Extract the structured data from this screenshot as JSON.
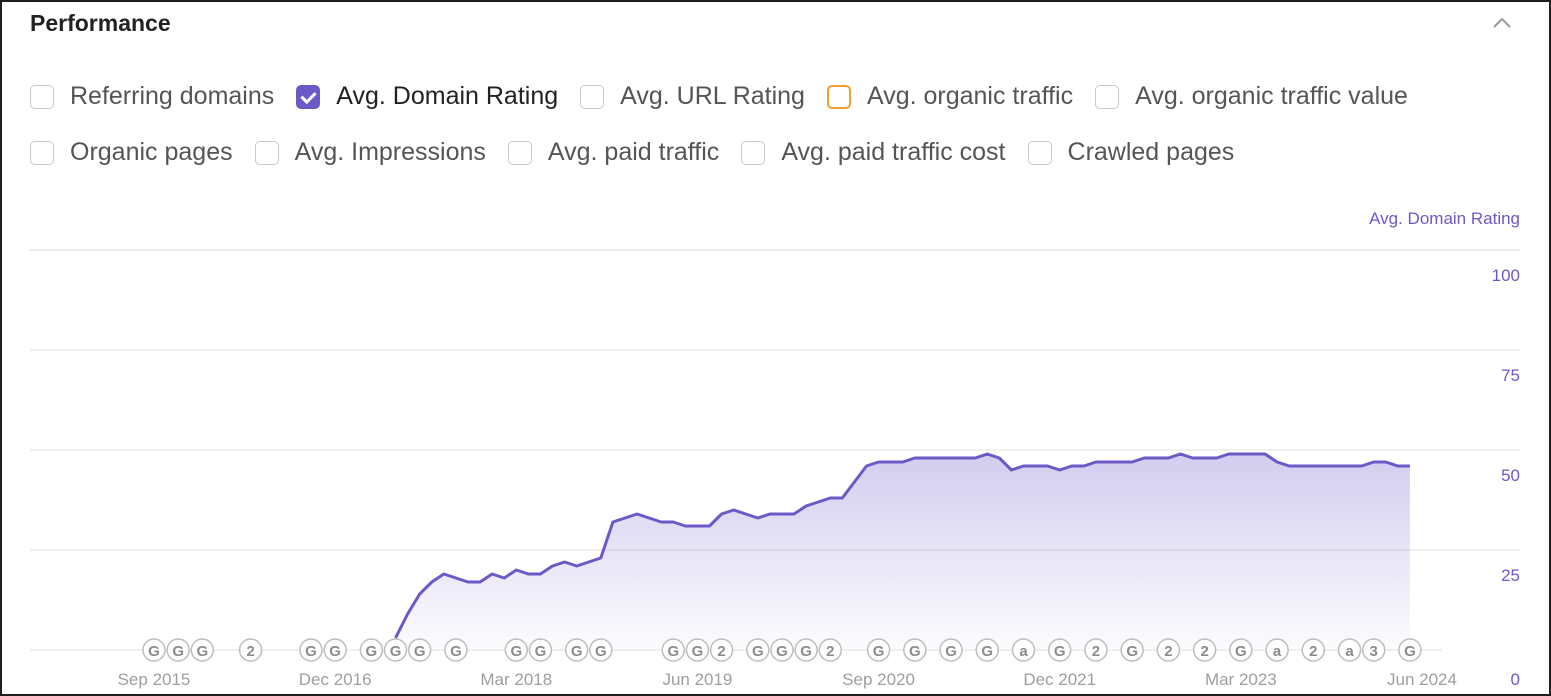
{
  "header": {
    "title": "Performance"
  },
  "metrics": [
    [
      {
        "label": "Referring domains",
        "checked": false,
        "color": "#c8c8c8"
      },
      {
        "label": "Avg. Domain Rating",
        "checked": true,
        "color": "#6c58c7"
      },
      {
        "label": "Avg. URL Rating",
        "checked": false,
        "color": "#c8c8c8"
      },
      {
        "label": "Avg. organic traffic",
        "checked": false,
        "color": "#f0a030"
      },
      {
        "label": "Avg. organic traffic value",
        "checked": false,
        "color": "#c8c8c8"
      }
    ],
    [
      {
        "label": "Organic pages",
        "checked": false,
        "color": "#c8c8c8"
      },
      {
        "label": "Avg. Impressions",
        "checked": false,
        "color": "#c8c8c8"
      },
      {
        "label": "Avg. paid traffic",
        "checked": false,
        "color": "#c8c8c8"
      },
      {
        "label": "Avg. paid traffic cost",
        "checked": false,
        "color": "#c8c8c8"
      },
      {
        "label": "Crawled pages",
        "checked": false,
        "color": "#c8c8c8"
      }
    ]
  ],
  "colors": {
    "series": "#6c58c7",
    "axis_text": "#6c58c7",
    "grid": "#e8e8e8",
    "marker": "#bdbdbd"
  },
  "chart_data": {
    "type": "area",
    "title": "",
    "xlabel": "",
    "ylabel": "Avg. Domain Rating",
    "ylim": [
      0,
      100
    ],
    "yticks": [
      0,
      25,
      50,
      75,
      100
    ],
    "xlim": [
      "2015-01",
      "2024-07"
    ],
    "xticks": [
      {
        "date": "2015-09",
        "label": "Sep 2015"
      },
      {
        "date": "2016-12",
        "label": "Dec 2016"
      },
      {
        "date": "2018-03",
        "label": "Mar 2018"
      },
      {
        "date": "2019-06",
        "label": "Jun 2019"
      },
      {
        "date": "2020-09",
        "label": "Sep 2020"
      },
      {
        "date": "2021-12",
        "label": "Dec 2021"
      },
      {
        "date": "2023-03",
        "label": "Mar 2023"
      },
      {
        "date": "2024-06",
        "label": "Jun 2024"
      }
    ],
    "grid": true,
    "series": [
      {
        "name": "Avg. Domain Rating",
        "points": [
          [
            "2017-05",
            3
          ],
          [
            "2017-06",
            9
          ],
          [
            "2017-07",
            14
          ],
          [
            "2017-08",
            17
          ],
          [
            "2017-09",
            19
          ],
          [
            "2017-10",
            18
          ],
          [
            "2017-11",
            17
          ],
          [
            "2017-12",
            17
          ],
          [
            "2018-01",
            19
          ],
          [
            "2018-02",
            18
          ],
          [
            "2018-03",
            20
          ],
          [
            "2018-04",
            19
          ],
          [
            "2018-05",
            19
          ],
          [
            "2018-06",
            21
          ],
          [
            "2018-07",
            22
          ],
          [
            "2018-08",
            21
          ],
          [
            "2018-09",
            22
          ],
          [
            "2018-10",
            23
          ],
          [
            "2018-11",
            32
          ],
          [
            "2018-12",
            33
          ],
          [
            "2019-01",
            34
          ],
          [
            "2019-02",
            33
          ],
          [
            "2019-03",
            32
          ],
          [
            "2019-04",
            32
          ],
          [
            "2019-05",
            31
          ],
          [
            "2019-06",
            31
          ],
          [
            "2019-07",
            31
          ],
          [
            "2019-08",
            34
          ],
          [
            "2019-09",
            35
          ],
          [
            "2019-10",
            34
          ],
          [
            "2019-11",
            33
          ],
          [
            "2019-12",
            34
          ],
          [
            "2020-01",
            34
          ],
          [
            "2020-02",
            34
          ],
          [
            "2020-03",
            36
          ],
          [
            "2020-04",
            37
          ],
          [
            "2020-05",
            38
          ],
          [
            "2020-06",
            38
          ],
          [
            "2020-07",
            42
          ],
          [
            "2020-08",
            46
          ],
          [
            "2020-09",
            47
          ],
          [
            "2020-10",
            47
          ],
          [
            "2020-11",
            47
          ],
          [
            "2020-12",
            48
          ],
          [
            "2021-01",
            48
          ],
          [
            "2021-02",
            48
          ],
          [
            "2021-03",
            48
          ],
          [
            "2021-04",
            48
          ],
          [
            "2021-05",
            48
          ],
          [
            "2021-06",
            49
          ],
          [
            "2021-07",
            48
          ],
          [
            "2021-08",
            45
          ],
          [
            "2021-09",
            46
          ],
          [
            "2021-10",
            46
          ],
          [
            "2021-11",
            46
          ],
          [
            "2021-12",
            45
          ],
          [
            "2022-01",
            46
          ],
          [
            "2022-02",
            46
          ],
          [
            "2022-03",
            47
          ],
          [
            "2022-04",
            47
          ],
          [
            "2022-05",
            47
          ],
          [
            "2022-06",
            47
          ],
          [
            "2022-07",
            48
          ],
          [
            "2022-08",
            48
          ],
          [
            "2022-09",
            48
          ],
          [
            "2022-10",
            49
          ],
          [
            "2022-11",
            48
          ],
          [
            "2022-12",
            48
          ],
          [
            "2023-01",
            48
          ],
          [
            "2023-02",
            49
          ],
          [
            "2023-03",
            49
          ],
          [
            "2023-04",
            49
          ],
          [
            "2023-05",
            49
          ],
          [
            "2023-06",
            47
          ],
          [
            "2023-07",
            46
          ],
          [
            "2023-08",
            46
          ],
          [
            "2023-09",
            46
          ],
          [
            "2023-10",
            46
          ],
          [
            "2023-11",
            46
          ],
          [
            "2023-12",
            46
          ],
          [
            "2024-01",
            46
          ],
          [
            "2024-02",
            47
          ],
          [
            "2024-03",
            47
          ],
          [
            "2024-04",
            46
          ],
          [
            "2024-05",
            46
          ]
        ]
      }
    ],
    "annotations": [
      {
        "date": "2015-09",
        "label": "G"
      },
      {
        "date": "2015-11",
        "label": "G"
      },
      {
        "date": "2016-01",
        "label": "G"
      },
      {
        "date": "2016-05",
        "label": "2"
      },
      {
        "date": "2016-10",
        "label": "G"
      },
      {
        "date": "2016-12",
        "label": "G"
      },
      {
        "date": "2017-03",
        "label": "G"
      },
      {
        "date": "2017-05",
        "label": "G"
      },
      {
        "date": "2017-07",
        "label": "G"
      },
      {
        "date": "2017-10",
        "label": "G"
      },
      {
        "date": "2018-03",
        "label": "G"
      },
      {
        "date": "2018-05",
        "label": "G"
      },
      {
        "date": "2018-08",
        "label": "G"
      },
      {
        "date": "2018-10",
        "label": "G"
      },
      {
        "date": "2019-04",
        "label": "G"
      },
      {
        "date": "2019-06",
        "label": "G"
      },
      {
        "date": "2019-08",
        "label": "2"
      },
      {
        "date": "2019-11",
        "label": "G"
      },
      {
        "date": "2020-01",
        "label": "G"
      },
      {
        "date": "2020-03",
        "label": "G"
      },
      {
        "date": "2020-05",
        "label": "2"
      },
      {
        "date": "2020-09",
        "label": "G"
      },
      {
        "date": "2020-12",
        "label": "G"
      },
      {
        "date": "2021-03",
        "label": "G"
      },
      {
        "date": "2021-06",
        "label": "G"
      },
      {
        "date": "2021-09",
        "label": "a"
      },
      {
        "date": "2021-12",
        "label": "G"
      },
      {
        "date": "2022-03",
        "label": "2"
      },
      {
        "date": "2022-06",
        "label": "G"
      },
      {
        "date": "2022-09",
        "label": "2"
      },
      {
        "date": "2022-12",
        "label": "2"
      },
      {
        "date": "2023-03",
        "label": "G"
      },
      {
        "date": "2023-06",
        "label": "a"
      },
      {
        "date": "2023-09",
        "label": "2"
      },
      {
        "date": "2023-12",
        "label": "a"
      },
      {
        "date": "2024-02",
        "label": "3"
      },
      {
        "date": "2024-05",
        "label": "G"
      }
    ]
  }
}
